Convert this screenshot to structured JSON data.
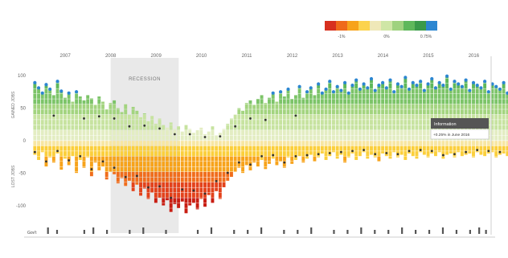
{
  "legend": {
    "colors": [
      "#d7301f",
      "#ef6a1a",
      "#f7a31b",
      "#fcd34d",
      "#efe8b8",
      "#cfe6a6",
      "#9fd27f",
      "#5fb85b",
      "#3a9a4a",
      "#2c86d1"
    ],
    "labels": [
      "-1%",
      "0%",
      "0.75%"
    ]
  },
  "chart_data": {
    "type": "bar",
    "title": "",
    "xlabel": "",
    "ylabel_top": "GAINED JOBS",
    "ylabel_bottom": "LOST JOBS",
    "x_ticks": [
      "2007",
      "2008",
      "2009",
      "2010",
      "2011",
      "2012",
      "2013",
      "2014",
      "2015",
      "2016"
    ],
    "x_range": [
      2006.2,
      2016.4
    ],
    "ylim": [
      -125,
      120
    ],
    "y_ticks": [
      "100",
      "50",
      "0",
      "-50",
      "-100"
    ],
    "y_tick_values": [
      100,
      50,
      0,
      -50,
      -100
    ],
    "grid": false,
    "recession": {
      "label": "RECESSION",
      "start": 2008.0,
      "end": 2009.5
    },
    "series": [
      {
        "values": {
          "start": 2006.33,
          "step": 0.0833,
          "gains": [
            88,
            80,
            72,
            85,
            78,
            70,
            90,
            75,
            66,
            72,
            60,
            74,
            68,
            62,
            70,
            65,
            55,
            68,
            60,
            48,
            58,
            62,
            50,
            44,
            56,
            40,
            52,
            46,
            36,
            42,
            30,
            38,
            26,
            34,
            24,
            20,
            28,
            18,
            22,
            14,
            24,
            18,
            12,
            16,
            20,
            10,
            14,
            22,
            8,
            12,
            18,
            26,
            34,
            40,
            50,
            46,
            58,
            62,
            55,
            64,
            70,
            58,
            66,
            72,
            60,
            74,
            68,
            78,
            64,
            70,
            82,
            66,
            74,
            80,
            70,
            86,
            72,
            78,
            90,
            74,
            82,
            76,
            88,
            72,
            84,
            92,
            78,
            86,
            80,
            94,
            76,
            84,
            88,
            80,
            92,
            74,
            86,
            82,
            96,
            78,
            88,
            84,
            90,
            76,
            86,
            94,
            80,
            88,
            84,
            98,
            78,
            90,
            86,
            82,
            92,
            76,
            88,
            84,
            80,
            90,
            74,
            86,
            82,
            78,
            88,
            72,
            84
          ],
          "losses": [
            -22,
            -30,
            -18,
            -40,
            -26,
            -34,
            -20,
            -45,
            -28,
            -38,
            -24,
            -50,
            -30,
            -42,
            -26,
            -55,
            -34,
            -46,
            -40,
            -60,
            -48,
            -52,
            -66,
            -58,
            -70,
            -62,
            -78,
            -68,
            -85,
            -74,
            -90,
            -80,
            -96,
            -88,
            -100,
            -92,
            -110,
            -98,
            -104,
            -94,
            -112,
            -100,
            -96,
            -106,
            -90,
            -102,
            -84,
            -96,
            -78,
            -90,
            -72,
            -62,
            -56,
            -48,
            -42,
            -50,
            -38,
            -46,
            -34,
            -40,
            -30,
            -44,
            -36,
            -28,
            -38,
            -32,
            -42,
            -26,
            -36,
            -30,
            -24,
            -34,
            -28,
            -22,
            -32,
            -26,
            -20,
            -30,
            -24,
            -18,
            -28,
            -22,
            -34,
            -26,
            -20,
            -30,
            -24,
            -18,
            -28,
            -22,
            -26,
            -32,
            -20,
            -24,
            -28,
            -18,
            -26,
            -22,
            -30,
            -20,
            -24,
            -28,
            -18,
            -22,
            -26,
            -20,
            -24,
            -18,
            -28,
            -22,
            -20,
            -26,
            -18,
            -24,
            -22,
            -20,
            -26,
            -18,
            -22,
            -24,
            -20,
            -18,
            -26,
            -22,
            -20,
            -24,
            -18
          ]
        }
      }
    ],
    "tooltip": {
      "title": "Information",
      "body": "+0.25% in June 2016"
    },
    "footer": {
      "label": "Gov't"
    }
  }
}
